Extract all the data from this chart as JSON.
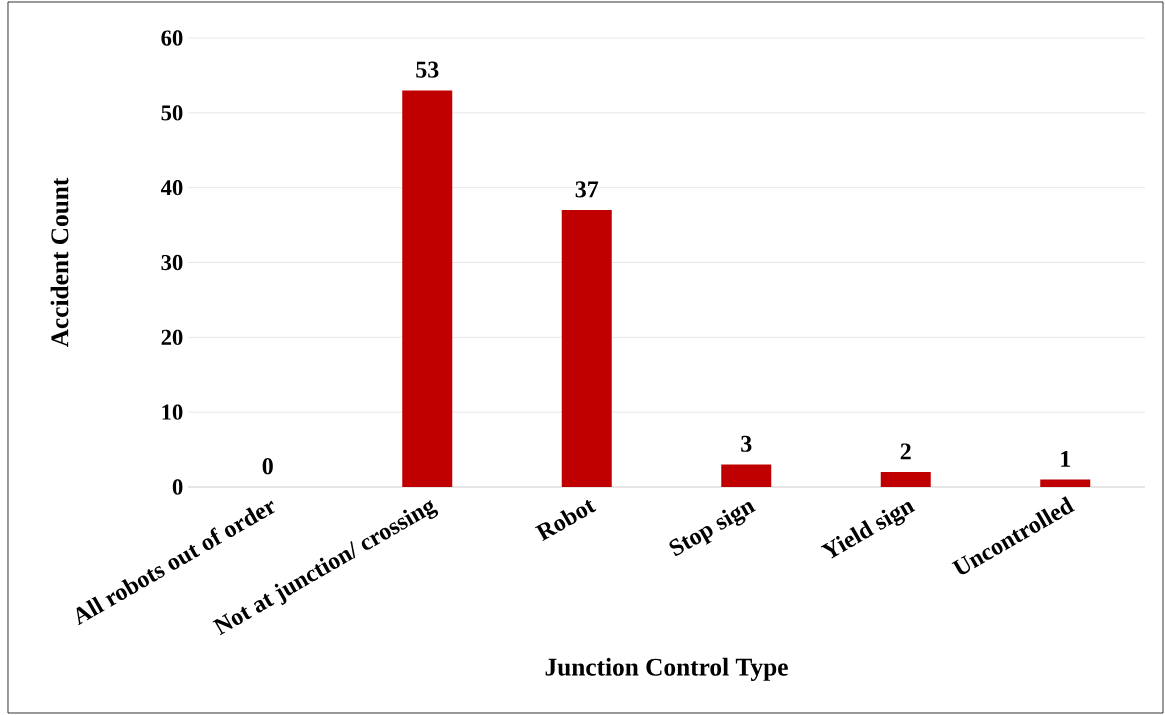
{
  "chart_data": {
    "type": "bar",
    "xlabel": "Junction Control Type",
    "ylabel": "Accident Count",
    "categories": [
      "All robots out of order",
      "Not at junction/ crossing",
      "Robot",
      "Stop sign",
      "Yield sign",
      "Uncontrolled"
    ],
    "values": [
      0,
      53,
      37,
      3,
      2,
      1
    ],
    "color": "#c00000",
    "ylim": [
      0,
      60
    ],
    "yticks": [
      0,
      10,
      20,
      30,
      40,
      50,
      60
    ],
    "grid": "y",
    "data_labels": true
  }
}
